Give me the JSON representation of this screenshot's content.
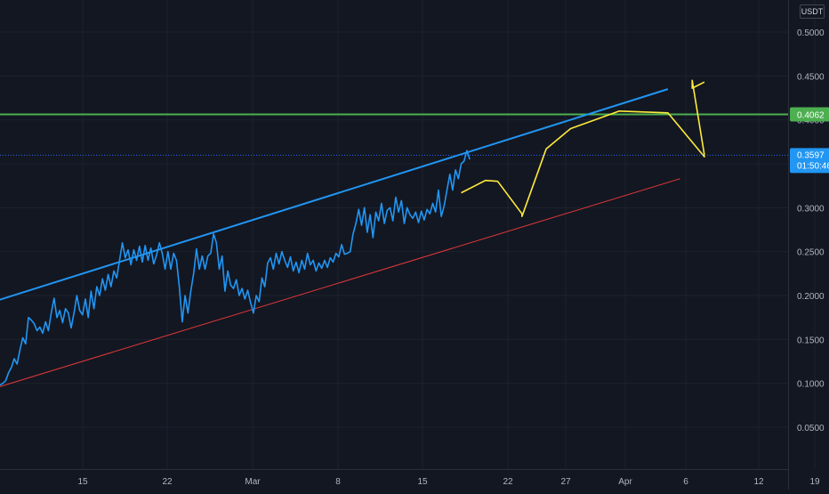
{
  "currency": "USDT",
  "colors": {
    "background": "#131722",
    "grid": "#1e222d",
    "price_line": "#2196f3",
    "upper_channel": "#2196f3",
    "lower_channel": "#e0383a",
    "projection": "#ffeb3b",
    "resistance": "#4caf50",
    "current_price_dotted": "#2962ff"
  },
  "price_tag": {
    "value": "0.3597",
    "countdown": "01:50:46"
  },
  "resistance_tag": {
    "value": "0.4062"
  },
  "chart_data": {
    "type": "line",
    "x_ticks": [
      "15",
      "22",
      "Mar",
      "8",
      "15",
      "22",
      "27",
      "Apr",
      "6",
      "12",
      "19"
    ],
    "y_ticks": [
      "0.0500",
      "0.1000",
      "0.1500",
      "0.2000",
      "0.2500",
      "0.3000",
      "0.3500",
      "0.4000",
      "0.4500",
      "0.5000"
    ],
    "ylim": [
      0.0,
      0.53
    ],
    "grid": true,
    "series": [
      {
        "role": "price",
        "values": [
          0.098,
          0.1,
          0.103,
          0.112,
          0.118,
          0.128,
          0.122,
          0.138,
          0.152,
          0.145,
          0.175,
          0.172,
          0.168,
          0.16,
          0.164,
          0.157,
          0.17,
          0.16,
          0.18,
          0.197,
          0.175,
          0.183,
          0.169,
          0.185,
          0.18,
          0.163,
          0.18,
          0.2,
          0.183,
          0.178,
          0.196,
          0.175,
          0.205,
          0.185,
          0.21,
          0.2,
          0.219,
          0.206,
          0.224,
          0.21,
          0.228,
          0.22,
          0.24,
          0.26,
          0.243,
          0.252,
          0.235,
          0.252,
          0.24,
          0.256,
          0.238,
          0.257,
          0.24,
          0.254,
          0.236,
          0.246,
          0.26,
          0.248,
          0.23,
          0.25,
          0.23,
          0.248,
          0.24,
          0.21,
          0.17,
          0.2,
          0.18,
          0.205,
          0.225,
          0.253,
          0.23,
          0.245,
          0.23,
          0.245,
          0.248,
          0.27,
          0.26,
          0.23,
          0.245,
          0.205,
          0.228,
          0.212,
          0.208,
          0.218,
          0.2,
          0.208,
          0.196,
          0.206,
          0.192,
          0.18,
          0.2,
          0.193,
          0.22,
          0.21,
          0.237,
          0.243,
          0.23,
          0.248,
          0.236,
          0.25,
          0.24,
          0.232,
          0.244,
          0.228,
          0.238,
          0.226,
          0.24,
          0.23,
          0.248,
          0.235,
          0.24,
          0.228,
          0.237,
          0.231,
          0.24,
          0.232,
          0.243,
          0.238,
          0.248,
          0.244,
          0.258,
          0.247,
          0.248,
          0.25,
          0.27,
          0.282,
          0.298,
          0.28,
          0.3,
          0.272,
          0.292,
          0.266,
          0.295,
          0.285,
          0.305,
          0.282,
          0.297,
          0.3,
          0.285,
          0.312,
          0.295,
          0.308,
          0.282,
          0.3,
          0.292,
          0.288,
          0.295,
          0.283,
          0.296,
          0.286,
          0.298,
          0.293,
          0.305,
          0.295,
          0.32,
          0.29,
          0.302,
          0.32,
          0.338,
          0.32,
          0.343,
          0.333,
          0.35,
          0.353,
          0.365,
          0.355
        ],
        "x_range": [
          "2024-02-08",
          "2024-03-18"
        ]
      },
      {
        "role": "upper-channel",
        "points": [
          [
            "2024-02-08",
            0.195
          ],
          [
            "2024-04-03",
            0.435
          ]
        ]
      },
      {
        "role": "lower-channel",
        "points": [
          [
            "2024-02-08",
            0.096
          ],
          [
            "2024-04-04",
            0.333
          ]
        ]
      },
      {
        "role": "resistance",
        "value": 0.4062
      },
      {
        "role": "projection",
        "points": [
          [
            "2024-03-17",
            0.317
          ],
          [
            "2024-03-19",
            0.331
          ],
          [
            "2024-03-20",
            0.33
          ],
          [
            "2024-03-22",
            0.293
          ],
          [
            "2024-03-22",
            0.29
          ],
          [
            "2024-03-24",
            0.367
          ],
          [
            "2024-03-26",
            0.39
          ],
          [
            "2024-03-30",
            0.41
          ],
          [
            "2024-04-03",
            0.408
          ],
          [
            "2024-04-06",
            0.358
          ],
          [
            "2024-04-06",
            0.36
          ],
          [
            "2024-04-05",
            0.445
          ],
          [
            "2024-04-05",
            0.436
          ],
          [
            "2024-04-06",
            0.443
          ]
        ]
      }
    ]
  }
}
